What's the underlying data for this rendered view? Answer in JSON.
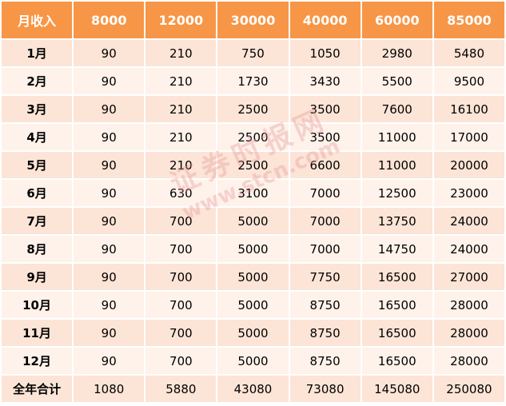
{
  "table": {
    "header": [
      "月收入",
      8000,
      12000,
      30000,
      40000,
      60000,
      85000
    ],
    "rows": [
      [
        "1月",
        90,
        210,
        750,
        1050,
        2980,
        5480
      ],
      [
        "2月",
        90,
        210,
        1730,
        3430,
        5500,
        9500
      ],
      [
        "3月",
        90,
        210,
        2500,
        3500,
        7600,
        16100
      ],
      [
        "4月",
        90,
        210,
        2500,
        3500,
        11000,
        17000
      ],
      [
        "5月",
        90,
        210,
        2500,
        6600,
        11000,
        20000
      ],
      [
        "6月",
        90,
        630,
        3100,
        7000,
        12500,
        23000
      ],
      [
        "7月",
        90,
        700,
        5000,
        7000,
        13750,
        24000
      ],
      [
        "8月",
        90,
        700,
        5000,
        7000,
        14750,
        24000
      ],
      [
        "9月",
        90,
        700,
        5000,
        7750,
        16500,
        27000
      ],
      [
        "10月",
        90,
        700,
        5000,
        8750,
        16500,
        28000
      ],
      [
        "11月",
        90,
        700,
        5000,
        8750,
        16500,
        28000
      ],
      [
        "12月",
        90,
        700,
        5000,
        8750,
        16500,
        28000
      ],
      [
        "全年合计",
        1080,
        5880,
        43080,
        73080,
        145080,
        250080
      ]
    ]
  },
  "watermark": {
    "name": "证券时报网",
    "url": "www.stcn.com"
  }
}
